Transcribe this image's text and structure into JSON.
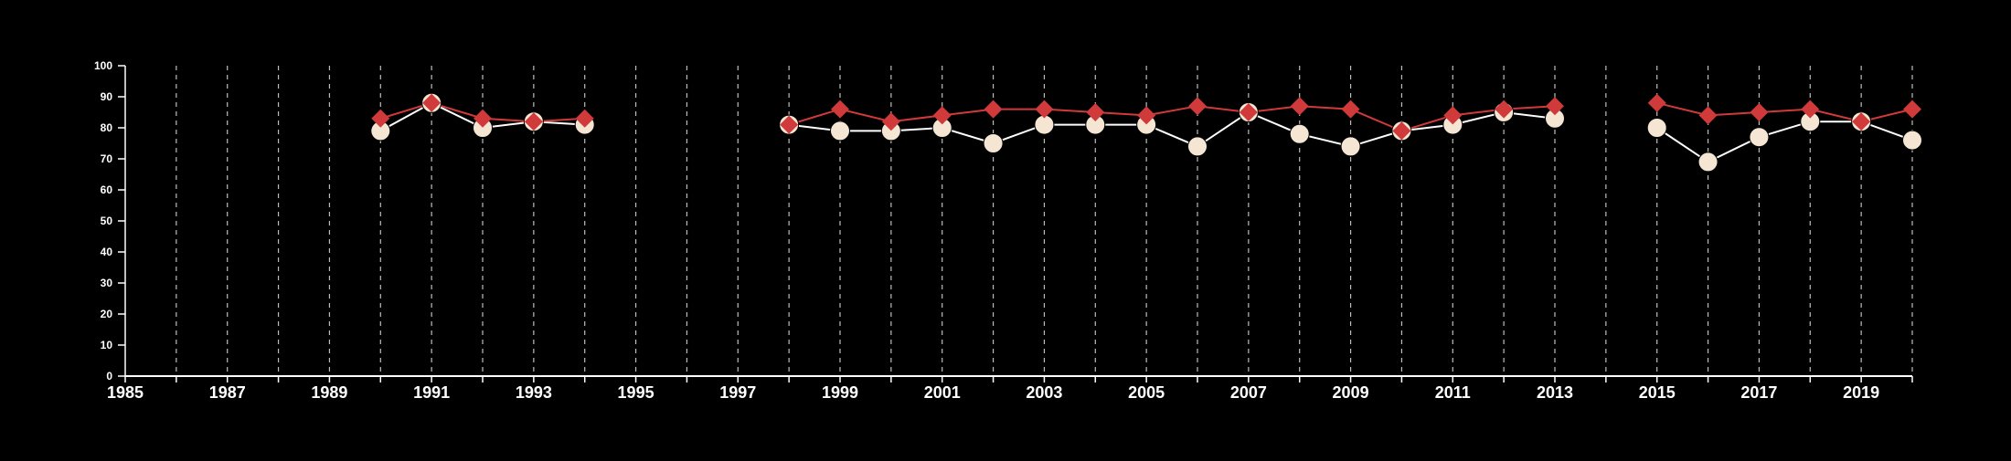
{
  "chart_data": {
    "type": "line",
    "title": "",
    "xlabel": "",
    "ylabel": "",
    "xlim": [
      1985,
      2020
    ],
    "ylim": [
      0,
      100
    ],
    "y_ticks": [
      0,
      10,
      20,
      30,
      40,
      50,
      60,
      70,
      80,
      90,
      100
    ],
    "x_tick_labels": [
      1985,
      1987,
      1989,
      1991,
      1993,
      1995,
      1997,
      1999,
      2001,
      2003,
      2005,
      2007,
      2009,
      2011,
      2013,
      2015,
      2017,
      2019
    ],
    "grid": "vertical dashed lines at every year",
    "legend": "none",
    "background_color": "#000000",
    "series": [
      {
        "marker": "diamond",
        "color": "#d03a3a",
        "points": [
          [
            1990,
            83
          ],
          [
            1991,
            88
          ],
          [
            1992,
            83
          ],
          [
            1993,
            82
          ],
          [
            1994,
            83
          ],
          [
            1998,
            81
          ],
          [
            1999,
            86
          ],
          [
            2000,
            82
          ],
          [
            2001,
            84
          ],
          [
            2002,
            86
          ],
          [
            2003,
            86
          ],
          [
            2004,
            85
          ],
          [
            2005,
            84
          ],
          [
            2006,
            87
          ],
          [
            2007,
            85
          ],
          [
            2008,
            87
          ],
          [
            2009,
            86
          ],
          [
            2010,
            79
          ],
          [
            2011,
            84
          ],
          [
            2012,
            86
          ],
          [
            2013,
            87
          ],
          [
            2015,
            88
          ],
          [
            2016,
            84
          ],
          [
            2017,
            85
          ],
          [
            2018,
            86
          ],
          [
            2019,
            82
          ],
          [
            2020,
            86
          ]
        ]
      },
      {
        "marker": "circle",
        "color": "#f5e6d3",
        "points": [
          [
            1990,
            79
          ],
          [
            1991,
            88
          ],
          [
            1992,
            80
          ],
          [
            1993,
            82
          ],
          [
            1994,
            81
          ],
          [
            1998,
            81
          ],
          [
            1999,
            79
          ],
          [
            2000,
            79
          ],
          [
            2001,
            80
          ],
          [
            2002,
            75
          ],
          [
            2003,
            81
          ],
          [
            2004,
            81
          ],
          [
            2005,
            81
          ],
          [
            2006,
            74
          ],
          [
            2007,
            85
          ],
          [
            2008,
            78
          ],
          [
            2009,
            74
          ],
          [
            2010,
            79
          ],
          [
            2011,
            81
          ],
          [
            2012,
            85
          ],
          [
            2013,
            83
          ],
          [
            2015,
            80
          ],
          [
            2016,
            69
          ],
          [
            2017,
            77
          ],
          [
            2018,
            82
          ],
          [
            2019,
            82
          ],
          [
            2020,
            76
          ]
        ]
      }
    ]
  }
}
